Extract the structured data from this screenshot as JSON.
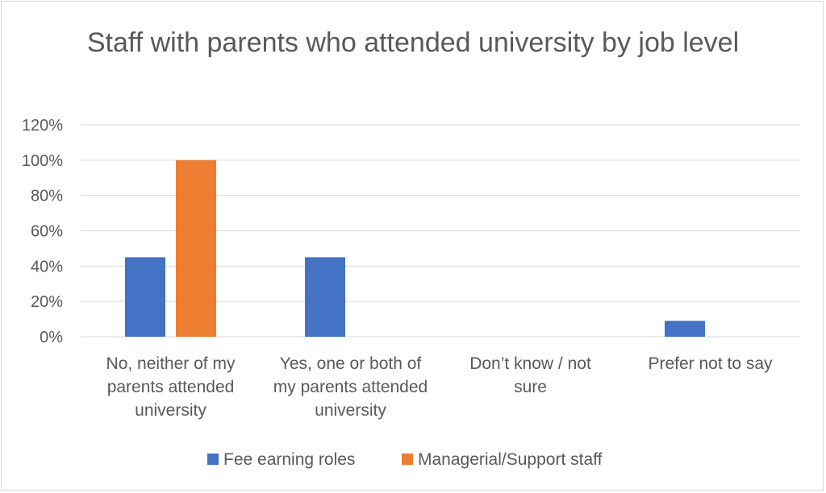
{
  "chart_data": {
    "type": "bar",
    "title": "Staff with parents who attended university by job level",
    "categories": [
      "No, neither of my parents attended university",
      "Yes, one or both of my parents attended university",
      "Don’t know / not sure",
      "Prefer not to say"
    ],
    "category_lines": [
      [
        "No, neither of my",
        "parents attended",
        "university"
      ],
      [
        "Yes, one or both of",
        "my parents attended",
        "university"
      ],
      [
        "Don’t know / not",
        "sure"
      ],
      [
        "Prefer not to say"
      ]
    ],
    "series": [
      {
        "name": "Fee earning roles",
        "color": "#4472c4",
        "values": [
          45,
          45,
          0,
          9
        ]
      },
      {
        "name": "Managerial/Support staff",
        "color": "#ed7d31",
        "values": [
          100,
          0,
          0,
          0
        ]
      }
    ],
    "ylim": [
      0,
      120
    ],
    "yticks": [
      0,
      20,
      40,
      60,
      80,
      100,
      120
    ],
    "ytick_labels": [
      "0%",
      "20%",
      "40%",
      "60%",
      "80%",
      "100%",
      "120%"
    ],
    "grid": true,
    "legend_position": "bottom"
  }
}
